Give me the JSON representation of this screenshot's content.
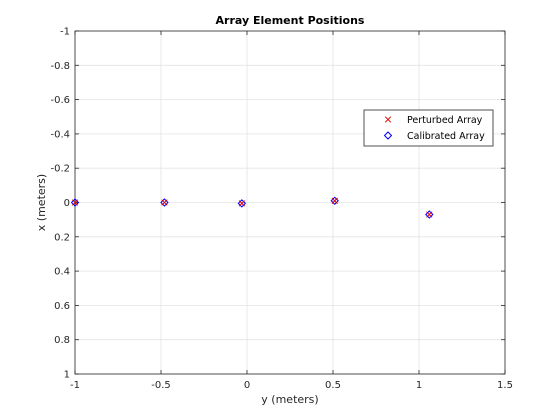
{
  "chart_data": {
    "type": "scatter",
    "title": "Array Element Positions",
    "xlabel": "y (meters)",
    "ylabel": "x (meters)",
    "xlim": [
      -1,
      1.5
    ],
    "ylim": [
      -1,
      1
    ],
    "y_reversed": true,
    "grid": true,
    "legend_position": "top-right",
    "x_ticks": [
      -1,
      -0.5,
      0,
      0.5,
      1,
      1.5
    ],
    "x_tick_labels": [
      "-1",
      "-0.5",
      "0",
      "0.5",
      "1",
      "1.5"
    ],
    "y_ticks": [
      -1,
      -0.8,
      -0.6,
      -0.4,
      -0.2,
      0,
      0.2,
      0.4,
      0.6,
      0.8,
      1
    ],
    "y_tick_labels": [
      "-1",
      "-0.8",
      "-0.6",
      "-0.4",
      "-0.2",
      "0",
      "0.2",
      "0.4",
      "0.6",
      "0.8",
      "1"
    ],
    "series": [
      {
        "name": "Perturbed Array",
        "marker": "x",
        "color": "#e00000",
        "points": [
          {
            "x": -1.0,
            "y": 0.0
          },
          {
            "x": -0.48,
            "y": 0.0
          },
          {
            "x": -0.03,
            "y": 0.005
          },
          {
            "x": 0.51,
            "y": -0.01
          },
          {
            "x": 1.06,
            "y": 0.07
          }
        ]
      },
      {
        "name": "Calibrated Array",
        "marker": "diamond",
        "color": "#0000ff",
        "points": [
          {
            "x": -1.0,
            "y": 0.0
          },
          {
            "x": -0.48,
            "y": 0.0
          },
          {
            "x": -0.03,
            "y": 0.005
          },
          {
            "x": 0.51,
            "y": -0.01
          },
          {
            "x": 1.06,
            "y": 0.07
          }
        ]
      }
    ]
  }
}
